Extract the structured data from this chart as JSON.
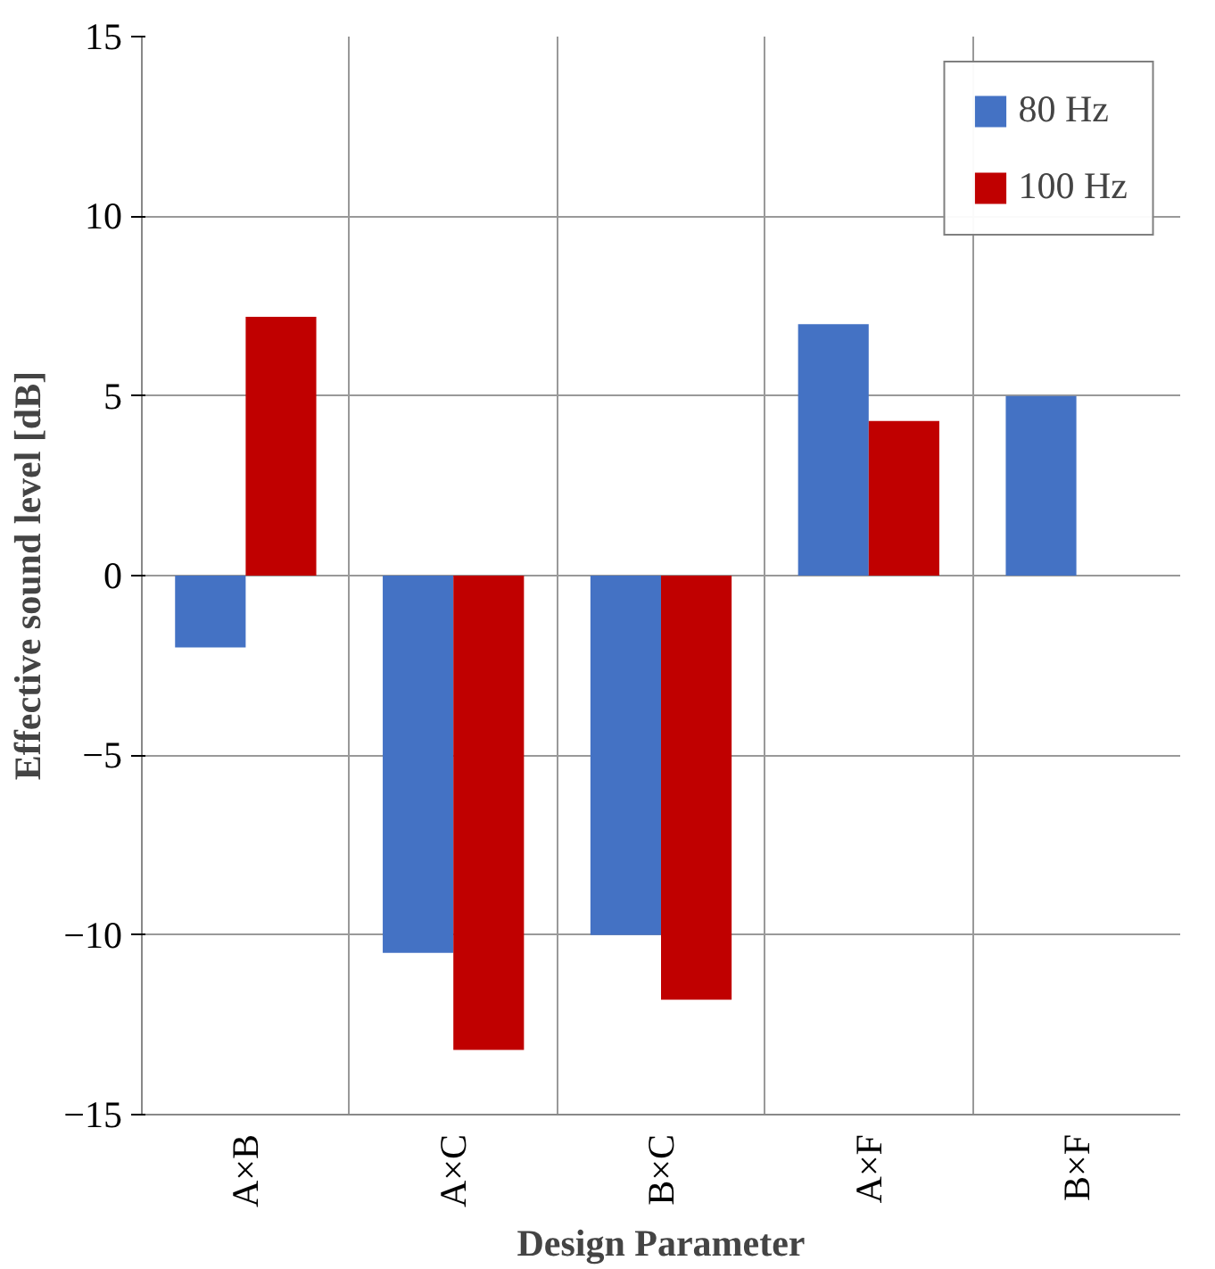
{
  "chart_data": {
    "type": "bar",
    "xlabel": "Design Parameter",
    "ylabel": "Effective sound level [dB]",
    "categories": [
      "A×B",
      "A×C",
      "B×C",
      "A×F",
      "B×F"
    ],
    "series": [
      {
        "name": "80 Hz",
        "color": "#4472c4",
        "values": [
          -2.0,
          -10.5,
          -10.0,
          7.0,
          5.0
        ]
      },
      {
        "name": "100 Hz",
        "color": "#c00000",
        "values": [
          7.2,
          -13.2,
          -11.8,
          4.3,
          null
        ]
      }
    ],
    "ylim": [
      -15,
      15
    ],
    "yticks": [
      -15,
      -10,
      -5,
      0,
      5,
      10,
      15
    ],
    "grid": true,
    "legend": "top right"
  }
}
